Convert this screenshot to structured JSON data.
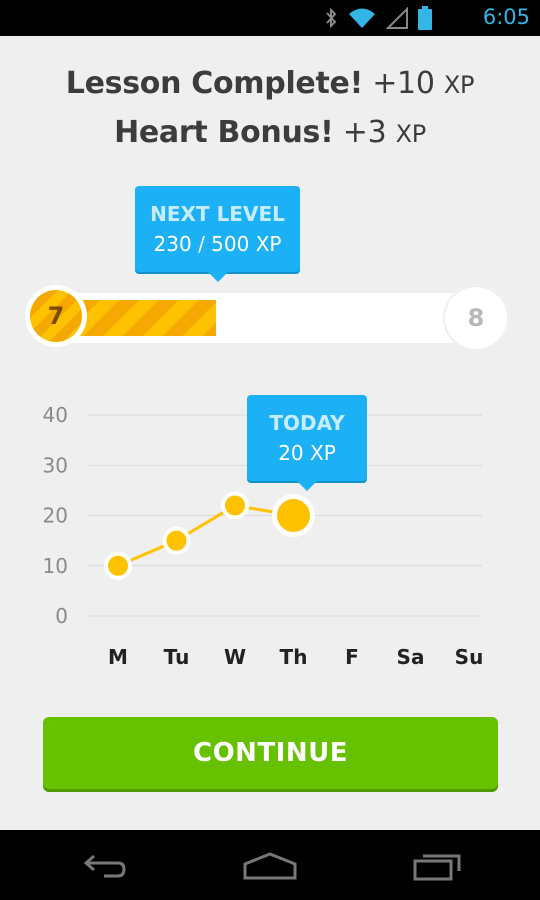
{
  "status_bar": {
    "time": "6:05",
    "icons": [
      "bluetooth-icon",
      "wifi-icon",
      "signal-icon",
      "battery-icon"
    ],
    "accent": "#33b5e5"
  },
  "header": {
    "line1": {
      "title": "Lesson Complete!",
      "amount": "+10",
      "unit": "XP"
    },
    "line2": {
      "title": "Heart Bonus!",
      "amount": "+3",
      "unit": "XP"
    }
  },
  "level": {
    "tooltip_title": "NEXT LEVEL",
    "tooltip_value": "230 / 500 XP",
    "current": "7",
    "next": "8",
    "progress": 0.46
  },
  "chart_data": {
    "type": "line",
    "categories": [
      "M",
      "Tu",
      "W",
      "Th",
      "F",
      "Sa",
      "Su"
    ],
    "values": [
      10,
      15,
      22,
      20,
      null,
      null,
      null
    ],
    "yticks": [
      40,
      30,
      20,
      10,
      0
    ],
    "ylim": [
      0,
      40
    ],
    "grid": true,
    "highlight_index": 3,
    "callout_title": "TODAY",
    "callout_value": "20 XP",
    "colors": {
      "line": "#ffc200",
      "grid": "#d9d9d9",
      "callout": "#1cb0f6"
    }
  },
  "actions": {
    "continue_label": "CONTINUE"
  },
  "colors": {
    "primary": "#66c100",
    "accent": "#1cb0f6",
    "gold": "#ffc200"
  },
  "nav_bar": {
    "icons": [
      "back-icon",
      "home-icon",
      "recents-icon"
    ]
  }
}
